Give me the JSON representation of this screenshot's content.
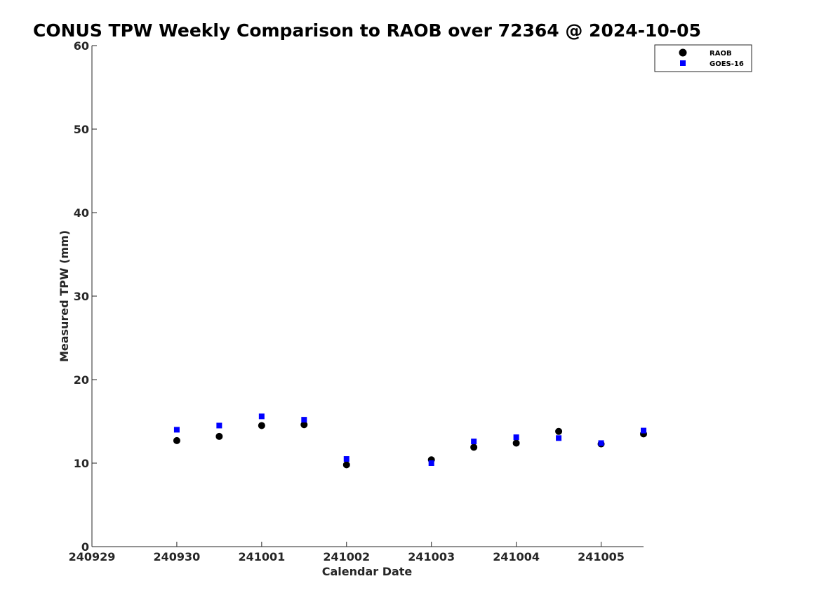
{
  "chart_data": {
    "type": "scatter",
    "title": "CONUS TPW Weekly Comparison to RAOB over 72364 @ 2024-10-05",
    "xlabel": "Calendar Date",
    "ylabel": "Measured TPW (mm)",
    "xlim": [
      "2024-09-29T00:00",
      "2024-10-05T12:00"
    ],
    "ylim": [
      0,
      60
    ],
    "x_ticks": [
      "2024-09-29",
      "2024-09-30",
      "2024-10-01",
      "2024-10-02",
      "2024-10-03",
      "2024-10-04",
      "2024-10-05"
    ],
    "x_tick_labels": [
      "240929",
      "240930",
      "241001",
      "241002",
      "241003",
      "241004",
      "241005"
    ],
    "y_ticks": [
      0,
      10,
      20,
      30,
      40,
      50,
      60
    ],
    "grid": false,
    "legend_position": "top-right",
    "series": [
      {
        "name": "RAOB",
        "marker": "circle",
        "color": "#000000",
        "x": [
          "2024-09-30T00:00",
          "2024-09-30T12:00",
          "2024-10-01T00:00",
          "2024-10-01T12:00",
          "2024-10-02T00:00",
          "2024-10-03T00:00",
          "2024-10-03T12:00",
          "2024-10-04T00:00",
          "2024-10-04T12:00",
          "2024-10-05T00:00",
          "2024-10-05T12:00"
        ],
        "y": [
          12.7,
          13.2,
          14.5,
          14.6,
          9.8,
          10.4,
          11.9,
          12.4,
          13.8,
          12.3,
          13.5
        ]
      },
      {
        "name": "GOES-16",
        "marker": "square",
        "color": "#0000ff",
        "x": [
          "2024-09-30T00:00",
          "2024-09-30T12:00",
          "2024-10-01T00:00",
          "2024-10-01T12:00",
          "2024-10-02T00:00",
          "2024-10-03T00:00",
          "2024-10-03T12:00",
          "2024-10-04T00:00",
          "2024-10-04T12:00",
          "2024-10-05T00:00",
          "2024-10-05T12:00"
        ],
        "y": [
          14.0,
          14.5,
          15.6,
          15.2,
          10.5,
          10.0,
          12.6,
          13.1,
          13.0,
          12.4,
          13.9
        ]
      }
    ]
  }
}
